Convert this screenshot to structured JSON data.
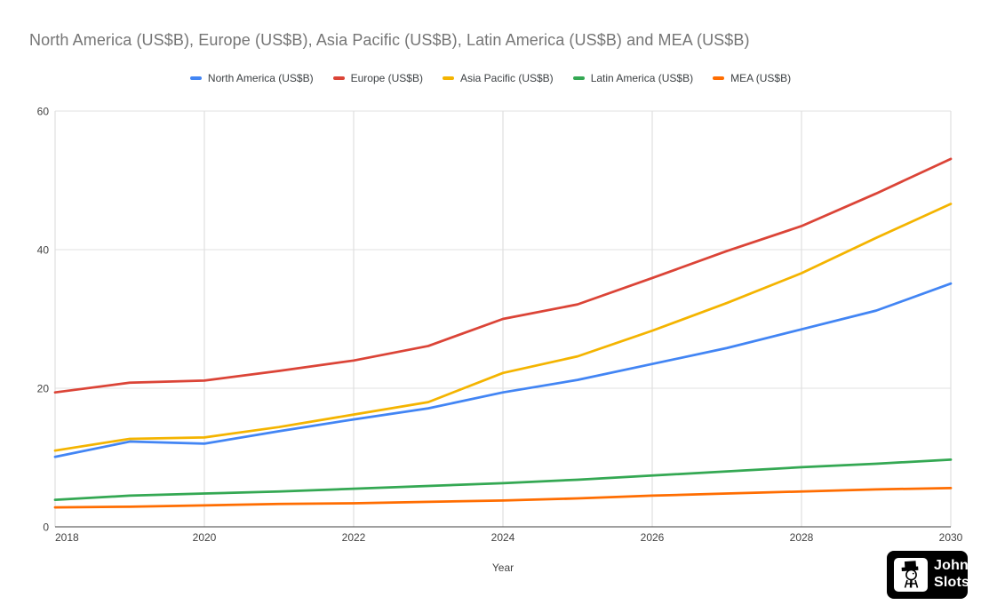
{
  "title": "North America (US$B), Europe (US$B), Asia Pacific (US$B), Latin America (US$B) and MEA (US$B)",
  "watermark": {
    "line1": "John",
    "line2": "Slots",
    "icon": "johnslots-mascot-icon",
    "bg_color": "#000000",
    "text_color": "#ffffff"
  },
  "chart_data": {
    "type": "line",
    "title": "North America (US$B), Europe (US$B), Asia Pacific (US$B), Latin America (US$B) and MEA (US$B)",
    "xlabel": "Year",
    "ylabel": "",
    "x": [
      2018,
      2019,
      2020,
      2021,
      2022,
      2023,
      2024,
      2025,
      2026,
      2027,
      2028,
      2029,
      2030
    ],
    "x_ticks": [
      2018,
      2020,
      2022,
      2024,
      2026,
      2028,
      2030
    ],
    "y_ticks": [
      0,
      20,
      40,
      60
    ],
    "ylim": [
      0,
      60
    ],
    "xlim": [
      2018,
      2030
    ],
    "grid": true,
    "legend_position": "top",
    "series": [
      {
        "name": "North America (US$B)",
        "color": "#4285F4",
        "values": [
          10.1,
          12.3,
          12.0,
          13.8,
          15.5,
          17.1,
          19.4,
          21.2,
          23.5,
          25.8,
          28.5,
          31.2,
          35.1
        ]
      },
      {
        "name": "Europe (US$B)",
        "color": "#DB4437",
        "values": [
          19.4,
          20.8,
          21.1,
          22.5,
          24.0,
          26.1,
          30.0,
          32.1,
          35.9,
          39.8,
          43.4,
          48.1,
          53.1
        ]
      },
      {
        "name": "Asia Pacific (US$B)",
        "color": "#F4B400",
        "values": [
          11.0,
          12.7,
          12.9,
          14.4,
          16.2,
          18.0,
          22.2,
          24.6,
          28.3,
          32.3,
          36.6,
          41.7,
          46.6
        ]
      },
      {
        "name": "Latin America (US$B)",
        "color": "#34A853",
        "values": [
          3.9,
          4.5,
          4.8,
          5.1,
          5.5,
          5.9,
          6.3,
          6.8,
          7.4,
          8.0,
          8.6,
          9.1,
          9.7
        ]
      },
      {
        "name": "MEA (US$B)",
        "color": "#FF6D01",
        "values": [
          2.8,
          2.9,
          3.1,
          3.3,
          3.4,
          3.6,
          3.8,
          4.1,
          4.5,
          4.8,
          5.1,
          5.4,
          5.6
        ]
      }
    ]
  }
}
